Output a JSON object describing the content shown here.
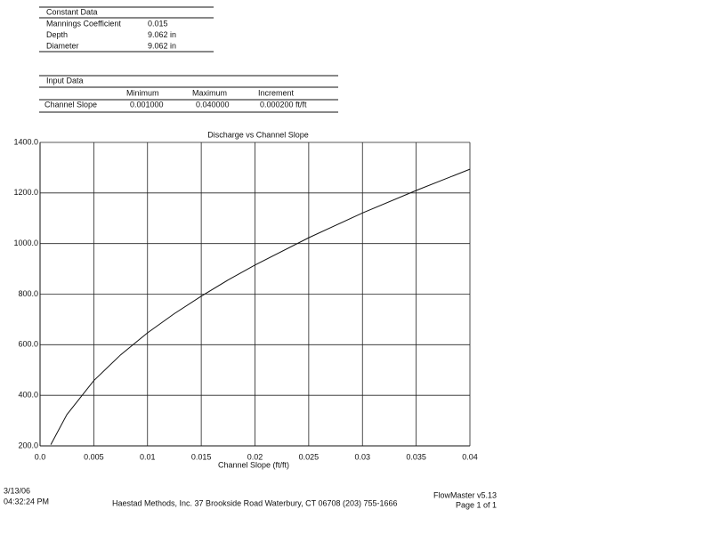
{
  "constant_data": {
    "title": "Constant Data",
    "rows": [
      [
        "Mannings Coefficient",
        "0.015"
      ],
      [
        "Depth",
        "9.062 in"
      ],
      [
        "Diameter",
        "9.062 in"
      ]
    ]
  },
  "input_data": {
    "title": "Input Data",
    "headers": [
      "Minimum",
      "Maximum",
      "Increment"
    ],
    "rows": [
      [
        "Channel Slope",
        "0.001000",
        "0.040000",
        "0.000200 ft/ft"
      ]
    ]
  },
  "chart_data": {
    "type": "line",
    "title": "Discharge vs Channel Slope",
    "x_label": "Channel Slope (ft/ft)",
    "x": [
      0.001,
      0.0025,
      0.005,
      0.0075,
      0.01,
      0.0125,
      0.015,
      0.0175,
      0.02,
      0.025,
      0.03,
      0.035,
      0.04
    ],
    "series": [
      {
        "color": "#111111",
        "values": [
          205,
          324,
          458,
          560,
          647,
          723,
          792,
          856,
          915,
          1023,
          1121,
          1210,
          1294
        ]
      }
    ],
    "xlim": [
      0,
      0.04
    ],
    "ylim": [
      200,
      1400
    ],
    "xticks": [
      {
        "value": 0,
        "label": "0.0"
      },
      0.005,
      0.01,
      0.015,
      0.02,
      0.025,
      0.03,
      0.035,
      0.04
    ],
    "yticks": [
      {
        "value": 200,
        "label": "200.0"
      },
      {
        "value": 400,
        "label": "400.0"
      },
      {
        "value": 600,
        "label": "600.0"
      },
      {
        "value": 800,
        "label": "800.0"
      },
      {
        "value": 1000,
        "label": "1000.0"
      },
      {
        "value": 1200,
        "label": "1200.0"
      },
      {
        "value": 1400,
        "label": "1400.0"
      }
    ],
    "grid": true
  },
  "footer": {
    "date": "3/13/06",
    "time": "04:32:24 PM",
    "company": "Haestad Methods, Inc.   37 Brookside Road   Waterbury, CT 06708   (203) 755-1666",
    "product": "FlowMaster v5.13",
    "page": "Page 1 of 1"
  }
}
